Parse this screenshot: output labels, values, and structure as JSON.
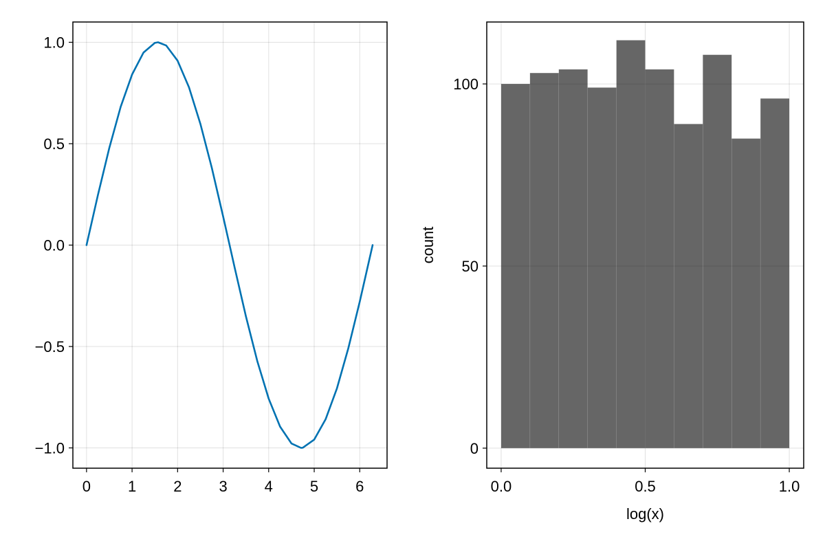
{
  "chart_data": [
    {
      "type": "line",
      "title": "",
      "xlabel": "",
      "ylabel": "",
      "xlim": [
        -0.3,
        6.6
      ],
      "ylim": [
        -1.1,
        1.1
      ],
      "x_ticks": [
        0,
        1,
        2,
        3,
        4,
        5,
        6
      ],
      "y_ticks": [
        -1.0,
        -0.5,
        0.0,
        0.5,
        1.0
      ],
      "x_tick_labels": [
        "0",
        "1",
        "2",
        "3",
        "4",
        "5",
        "6"
      ],
      "y_tick_labels": [
        "−1.0",
        "−0.5",
        "0.0",
        "0.5",
        "1.0"
      ],
      "grid": true,
      "series": [
        {
          "color": "#0072b2",
          "x": [
            0.0,
            0.25,
            0.5,
            0.75,
            1.0,
            1.25,
            1.5,
            1.571,
            1.75,
            2.0,
            2.25,
            2.5,
            2.75,
            3.0,
            3.142,
            3.25,
            3.5,
            3.75,
            4.0,
            4.25,
            4.5,
            4.712,
            4.75,
            5.0,
            5.25,
            5.5,
            5.75,
            6.0,
            6.283
          ],
          "y": [
            0.0,
            0.247,
            0.479,
            0.682,
            0.841,
            0.949,
            0.997,
            1.0,
            0.984,
            0.909,
            0.778,
            0.598,
            0.382,
            0.141,
            0.0,
            -0.108,
            -0.351,
            -0.572,
            -0.757,
            -0.895,
            -0.978,
            -1.0,
            -0.999,
            -0.959,
            -0.859,
            -0.706,
            -0.508,
            -0.279,
            0.0
          ]
        }
      ]
    },
    {
      "type": "bar",
      "title": "",
      "xlabel": "log(x)",
      "ylabel": "count",
      "xlim": [
        -0.05,
        1.05
      ],
      "ylim": [
        -5.5,
        117
      ],
      "x_ticks": [
        0.0,
        0.5,
        1.0
      ],
      "y_ticks": [
        0,
        50,
        100
      ],
      "x_tick_labels": [
        "0.0",
        "0.5",
        "1.0"
      ],
      "y_tick_labels": [
        "0",
        "50",
        "100"
      ],
      "grid": true,
      "bar_color": "#000000",
      "bar_opacity": 0.6,
      "bin_edges": [
        0.0,
        0.1,
        0.2,
        0.3,
        0.4,
        0.5,
        0.6,
        0.7,
        0.8,
        0.9,
        1.0
      ],
      "values": [
        100,
        103,
        104,
        99,
        112,
        104,
        89,
        108,
        85,
        96
      ]
    }
  ]
}
